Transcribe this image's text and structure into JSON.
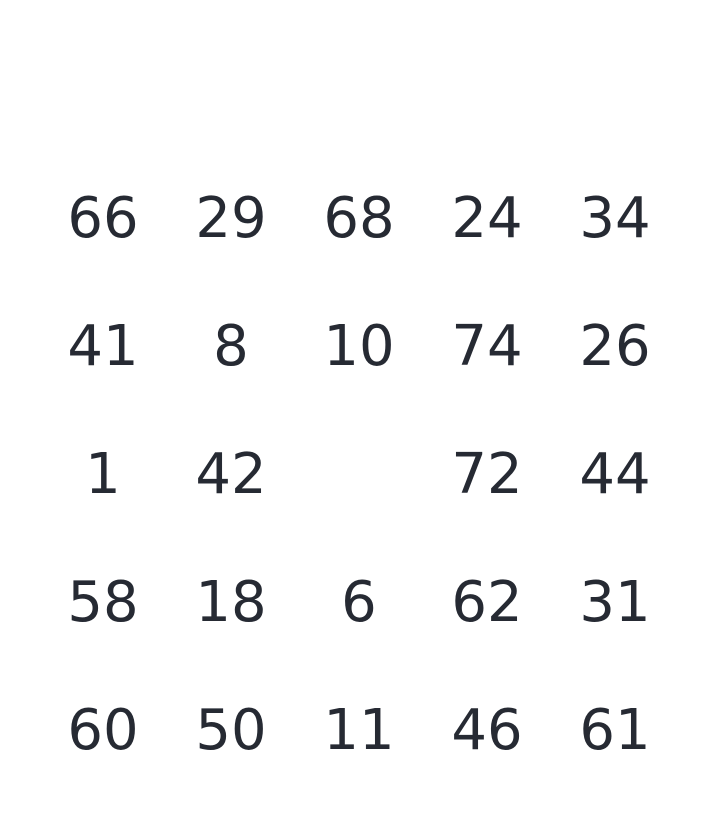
{
  "board": {
    "rows": [
      [
        "66",
        "29",
        "68",
        "24",
        "34"
      ],
      [
        "41",
        "8",
        "10",
        "74",
        "26"
      ],
      [
        "1",
        "42",
        "",
        "72",
        "44"
      ],
      [
        "58",
        "18",
        "6",
        "62",
        "31"
      ],
      [
        "60",
        "50",
        "11",
        "46",
        "61"
      ]
    ]
  }
}
